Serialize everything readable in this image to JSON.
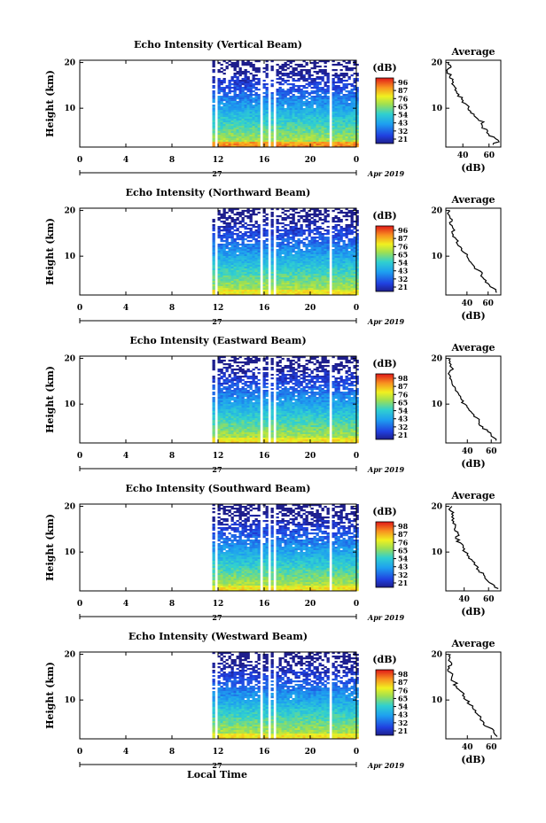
{
  "figure": {
    "xlabel_bottom": "Local Time",
    "date_label": "Apr 2019",
    "day_label": "27",
    "colorbar_unit": "(dB)",
    "avg_title": "Average",
    "avg_xlabel": "(dB)"
  },
  "chart_data": [
    {
      "type": "heatmap",
      "title": "Echo Intensity (Vertical Beam)",
      "ylabel": "Height (km)",
      "xlabel": "Local Time",
      "x_ticks": [
        "0",
        "4",
        "8",
        "12",
        "16",
        "20",
        "0"
      ],
      "x_range_hours": [
        0,
        24
      ],
      "y_ticks": [
        "10",
        "20"
      ],
      "y_range_km": [
        1.5,
        20.5
      ],
      "data_start_hour": 11.5,
      "gaps_hours": [
        [
          11.6,
          11.8
        ],
        [
          15.6,
          15.8
        ],
        [
          16.3,
          16.5
        ],
        [
          16.7,
          16.9
        ],
        [
          21.6,
          21.8
        ]
      ],
      "colorbar_ticks": [
        "96",
        "87",
        "76",
        "65",
        "54",
        "43",
        "32",
        "21"
      ],
      "colorbar_range_db": [
        21,
        96
      ],
      "avg_profile": {
        "xticks": [
          "40",
          "60"
        ],
        "xlim_db": [
          27,
          69
        ],
        "yticks": [
          "10",
          "20"
        ],
        "points_db_km": [
          [
            63,
            2
          ],
          [
            67,
            3
          ],
          [
            60,
            4
          ],
          [
            59,
            5
          ],
          [
            55,
            6
          ],
          [
            56,
            7
          ],
          [
            50,
            8
          ],
          [
            46,
            9
          ],
          [
            44,
            10
          ],
          [
            42,
            11
          ],
          [
            39,
            12
          ],
          [
            37,
            13
          ],
          [
            34,
            14
          ],
          [
            33,
            15
          ],
          [
            32,
            16
          ],
          [
            30,
            17
          ],
          [
            28,
            18
          ],
          [
            31,
            19
          ],
          [
            29,
            20
          ]
        ]
      }
    },
    {
      "type": "heatmap",
      "title": "Echo Intensity (Northward Beam)",
      "ylabel": "Height (km)",
      "xlabel": "Local Time",
      "x_ticks": [
        "0",
        "4",
        "8",
        "12",
        "16",
        "20",
        "0"
      ],
      "x_range_hours": [
        0,
        24
      ],
      "y_ticks": [
        "10",
        "20"
      ],
      "y_range_km": [
        1.5,
        20.5
      ],
      "data_start_hour": 11.5,
      "gaps_hours": [
        [
          11.6,
          11.8
        ],
        [
          15.6,
          15.8
        ],
        [
          16.3,
          16.5
        ],
        [
          16.7,
          16.9
        ],
        [
          21.6,
          21.8
        ]
      ],
      "colorbar_ticks": [
        "96",
        "87",
        "76",
        "65",
        "54",
        "43",
        "32",
        "21"
      ],
      "colorbar_range_db": [
        21,
        96
      ],
      "avg_profile": {
        "xticks": [
          "40",
          "60"
        ],
        "xlim_db": [
          20,
          72
        ],
        "yticks": [
          "10",
          "20"
        ],
        "points_db_km": [
          [
            68,
            2
          ],
          [
            65,
            3
          ],
          [
            60,
            4
          ],
          [
            56,
            5
          ],
          [
            54,
            6
          ],
          [
            50,
            7
          ],
          [
            46,
            8
          ],
          [
            42,
            9
          ],
          [
            40,
            10
          ],
          [
            36,
            11
          ],
          [
            34,
            12
          ],
          [
            30,
            13
          ],
          [
            29,
            14
          ],
          [
            26,
            15
          ],
          [
            27,
            16
          ],
          [
            24,
            17
          ],
          [
            26,
            18
          ],
          [
            23,
            19
          ],
          [
            24,
            20
          ]
        ]
      }
    },
    {
      "type": "heatmap",
      "title": "Echo Intensity (Eastward Beam)",
      "ylabel": "Height (km)",
      "xlabel": "Local Time",
      "x_ticks": [
        "0",
        "4",
        "8",
        "12",
        "16",
        "20",
        "0"
      ],
      "x_range_hours": [
        0,
        24
      ],
      "y_ticks": [
        "10",
        "20"
      ],
      "y_range_km": [
        1.5,
        20.5
      ],
      "data_start_hour": 11.5,
      "gaps_hours": [
        [
          11.6,
          11.8
        ],
        [
          15.6,
          15.8
        ],
        [
          16.3,
          16.5
        ],
        [
          16.7,
          16.9
        ],
        [
          21.6,
          21.8
        ]
      ],
      "colorbar_ticks": [
        "98",
        "87",
        "76",
        "65",
        "54",
        "43",
        "32",
        "21"
      ],
      "colorbar_range_db": [
        21,
        98
      ],
      "avg_profile": {
        "xticks": [
          "40",
          "60"
        ],
        "xlim_db": [
          22,
          68
        ],
        "yticks": [
          "10",
          "20"
        ],
        "points_db_km": [
          [
            64,
            2
          ],
          [
            60,
            3
          ],
          [
            57,
            4
          ],
          [
            53,
            5
          ],
          [
            50,
            6
          ],
          [
            48,
            7
          ],
          [
            44,
            8
          ],
          [
            41,
            9
          ],
          [
            38,
            10
          ],
          [
            35,
            11
          ],
          [
            33,
            12
          ],
          [
            30,
            13
          ],
          [
            28,
            14
          ],
          [
            27,
            15
          ],
          [
            26,
            16
          ],
          [
            25,
            17
          ],
          [
            27,
            18
          ],
          [
            25,
            19
          ],
          [
            26,
            20
          ]
        ]
      }
    },
    {
      "type": "heatmap",
      "title": "Echo Intensity (Southward Beam)",
      "ylabel": "Height (km)",
      "xlabel": "Local Time",
      "x_ticks": [
        "0",
        "4",
        "8",
        "12",
        "16",
        "20",
        "0"
      ],
      "x_range_hours": [
        0,
        24
      ],
      "y_ticks": [
        "10",
        "20"
      ],
      "y_range_km": [
        1.5,
        20.5
      ],
      "data_start_hour": 11.5,
      "gaps_hours": [
        [
          11.6,
          11.8
        ],
        [
          15.6,
          15.8
        ],
        [
          16.3,
          16.5
        ],
        [
          16.7,
          16.9
        ],
        [
          21.6,
          21.8
        ]
      ],
      "colorbar_ticks": [
        "98",
        "87",
        "76",
        "65",
        "54",
        "43",
        "32",
        "21"
      ],
      "colorbar_range_db": [
        21,
        98
      ],
      "avg_profile": {
        "xticks": [
          "40",
          "60"
        ],
        "xlim_db": [
          25,
          70
        ],
        "yticks": [
          "10",
          "20"
        ],
        "points_db_km": [
          [
            68,
            2
          ],
          [
            63,
            3
          ],
          [
            58,
            4
          ],
          [
            56,
            5
          ],
          [
            52,
            6
          ],
          [
            50,
            7
          ],
          [
            47,
            8
          ],
          [
            44,
            9
          ],
          [
            41,
            10
          ],
          [
            39,
            11
          ],
          [
            37,
            12
          ],
          [
            33,
            13
          ],
          [
            35,
            14
          ],
          [
            32,
            15
          ],
          [
            33,
            16
          ],
          [
            30,
            17
          ],
          [
            31,
            18
          ],
          [
            29,
            19
          ],
          [
            30,
            20
          ]
        ]
      }
    },
    {
      "type": "heatmap",
      "title": "Echo Intensity (Westward Beam)",
      "ylabel": "Height (km)",
      "xlabel": "Local Time",
      "x_ticks": [
        "0",
        "4",
        "8",
        "12",
        "16",
        "20",
        "0"
      ],
      "x_range_hours": [
        0,
        24
      ],
      "y_ticks": [
        "10",
        "20"
      ],
      "y_range_km": [
        1.5,
        20.5
      ],
      "data_start_hour": 11.5,
      "gaps_hours": [
        [
          11.6,
          11.8
        ],
        [
          15.6,
          15.8
        ],
        [
          16.3,
          16.5
        ],
        [
          16.7,
          16.9
        ],
        [
          21.6,
          21.8
        ]
      ],
      "colorbar_ticks": [
        "98",
        "87",
        "76",
        "65",
        "54",
        "43",
        "32",
        "21"
      ],
      "colorbar_range_db": [
        21,
        98
      ],
      "avg_profile": {
        "xticks": [
          "40",
          "60"
        ],
        "xlim_db": [
          22,
          68
        ],
        "yticks": [
          "10",
          "20"
        ],
        "points_db_km": [
          [
            65,
            2
          ],
          [
            62,
            3
          ],
          [
            58,
            4
          ],
          [
            54,
            5
          ],
          [
            51,
            6
          ],
          [
            48,
            7
          ],
          [
            45,
            8
          ],
          [
            42,
            9
          ],
          [
            39,
            10
          ],
          [
            36,
            11
          ],
          [
            34,
            12
          ],
          [
            31,
            13
          ],
          [
            29,
            14
          ],
          [
            27,
            15
          ],
          [
            26,
            16
          ],
          [
            25,
            17
          ],
          [
            27,
            18
          ],
          [
            25,
            19
          ],
          [
            26,
            20
          ]
        ]
      }
    }
  ]
}
